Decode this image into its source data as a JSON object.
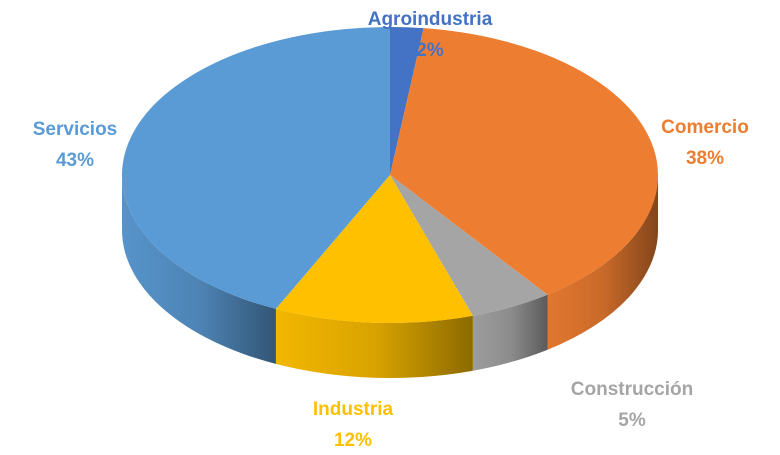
{
  "chart_data": {
    "type": "pie",
    "categories": [
      "Agroindustria",
      "Comercio",
      "Construcción",
      "Industria",
      "Servicios"
    ],
    "values": [
      2,
      38,
      5,
      12,
      43
    ],
    "value_labels": [
      "2%",
      "38%",
      "5%",
      "12%",
      "43%"
    ],
    "colors": [
      "#4472c4",
      "#ed7d31",
      "#a5a5a5",
      "#ffc000",
      "#5b9bd5"
    ]
  }
}
